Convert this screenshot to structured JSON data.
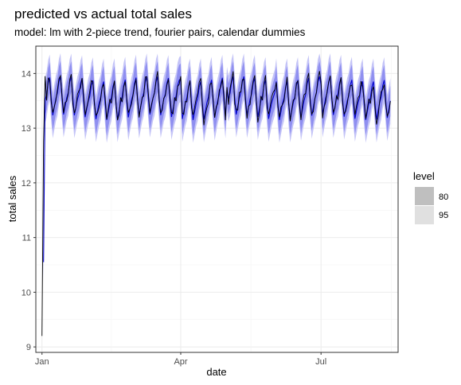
{
  "chart_data": {
    "type": "line",
    "title": "predicted vs actual total sales",
    "subtitle": "model: lm with 2-piece trend, fourier pairs, calendar dummies",
    "xlabel": "date",
    "ylabel": "total sales",
    "x_range": [
      "2016-12-28",
      "2017-08-20"
    ],
    "ylim": [
      8.9,
      14.5
    ],
    "x_ticks": [
      {
        "date": "2017-01-01",
        "label": "Jan"
      },
      {
        "date": "2017-04-01",
        "label": "Apr"
      },
      {
        "date": "2017-07-01",
        "label": "Jul"
      }
    ],
    "y_ticks": [
      9,
      10,
      11,
      12,
      13,
      14
    ],
    "grid": true,
    "legend": {
      "title": "level",
      "placement": "right",
      "entries": [
        {
          "label": "80",
          "color": "#bfbfbf"
        },
        {
          "label": "95",
          "color": "#e0e0e0"
        }
      ]
    },
    "date_range": [
      "2017-01-01",
      "2017-08-15"
    ],
    "initial_values": [
      9.2,
      12.75,
      13.95
    ],
    "prediction_start": "2017-01-02",
    "weekly_pattern": [
      -0.25,
      -0.1,
      0.05,
      0.15,
      0.35,
      0.45,
      0.05
    ],
    "baseline": 13.45,
    "spikes": [
      {
        "date": "2017-04-01",
        "value": 13.95
      },
      {
        "date": "2017-05-01",
        "value": 13.75
      },
      {
        "date": "2017-06-01",
        "value": 13.7
      },
      {
        "date": "2017-07-01",
        "value": 13.85
      }
    ],
    "interval_halfwidth": {
      "80": 0.28,
      "95": 0.42
    },
    "series": [
      {
        "name": "actual",
        "color": "#000000"
      },
      {
        "name": "predicted",
        "color": "#0000cc"
      }
    ],
    "band_colors": {
      "80": "#8f8ff0",
      "95": "#c4c4f7"
    }
  }
}
